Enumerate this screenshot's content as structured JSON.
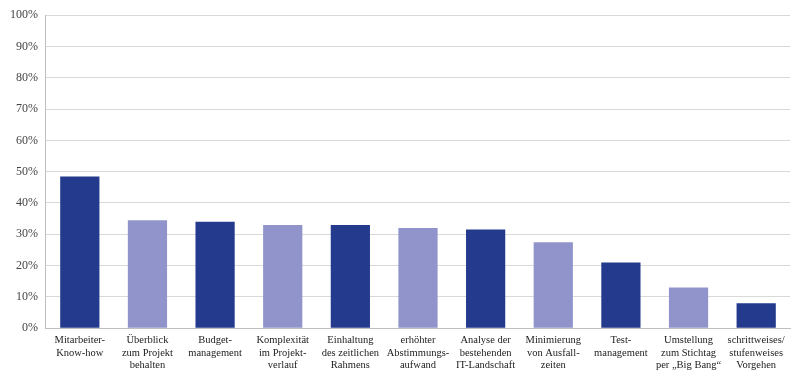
{
  "chart_data": {
    "type": "bar",
    "categories": [
      "Mitarbeiter-\nKnow-how",
      "Überblick\nzum Projekt\nbehalten",
      "Budget-\nmanagement",
      "Komplexität\nim Projekt-\nverlauf",
      "Einhaltung\ndes zeitlichen\nRahmens",
      "erhöhter\nAbstimmungs-\naufwand",
      "Analyse der\nbestehenden\nIT-Landschaft",
      "Minimierung\nvon Ausfall-\nzeiten",
      "Test-\nmanagement",
      "Umstellung\nzum Stichtag\nper „Big Bang“",
      "schrittweises/\nstufenweises\nVorgehen"
    ],
    "values": [
      48.5,
      34.5,
      34,
      33,
      33,
      32,
      31.5,
      27.5,
      21,
      13,
      8
    ],
    "colors": [
      "#243a8c",
      "#9194cb",
      "#243a8c",
      "#9194cb",
      "#243a8c",
      "#9194cb",
      "#243a8c",
      "#9194cb",
      "#243a8c",
      "#9194cb",
      "#243a8c"
    ],
    "ylim": [
      0,
      100
    ],
    "yticks": [
      {
        "value": 0,
        "label": "0%"
      },
      {
        "value": 10,
        "label": "10%"
      },
      {
        "value": 20,
        "label": "20%"
      },
      {
        "value": 30,
        "label": "30%"
      },
      {
        "value": 40,
        "label": "40%"
      },
      {
        "value": 50,
        "label": "50%"
      },
      {
        "value": 60,
        "label": "60%"
      },
      {
        "value": 70,
        "label": "70%"
      },
      {
        "value": 80,
        "label": "80%"
      },
      {
        "value": 90,
        "label": "90%"
      },
      {
        "value": 100,
        "label": "100%"
      }
    ],
    "grid": true
  }
}
